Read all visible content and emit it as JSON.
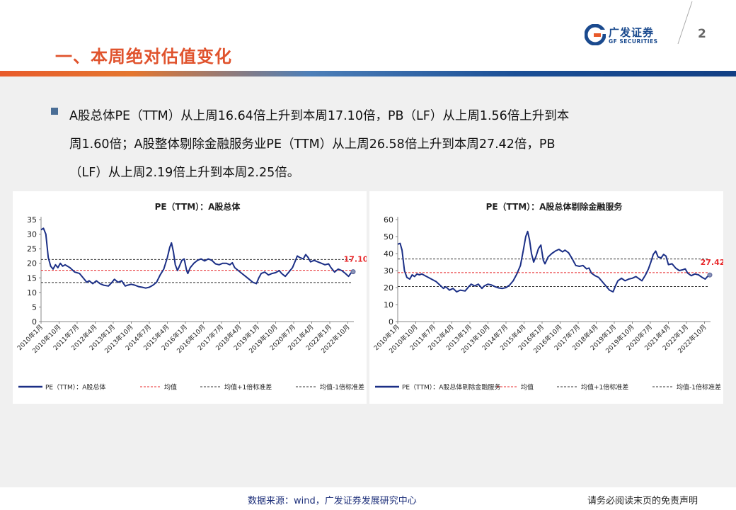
{
  "header": {
    "title": "一、本周绝对估值变化",
    "logo_cn": "广发证券",
    "logo_en": "GF SECURITIES",
    "page_number": "2"
  },
  "body": {
    "line1": "A股总体PE（TTM）从上周16.64倍上升到本周17.10倍，PB（LF）从上周1.56倍上升到本",
    "line2": "周1.60倍；A股整体剔除金融服务业PE（TTM）从上周26.58倍上升到本周27.42倍，PB",
    "line3": "（LF）从上周2.19倍上升到本周2.25倍。"
  },
  "footer": {
    "source": "数据来源：wind，广发证券发展研究中心",
    "disclaimer": "请务必阅读末页的免责声明"
  },
  "colors": {
    "title": "#e0532d",
    "series": "#1b2f86",
    "mean": "#e8282b",
    "std": "#333333",
    "last_label": "#e8282b"
  },
  "chart_data": [
    {
      "type": "line",
      "title": "PE（TTM）：A股总体",
      "ylim": [
        0,
        35
      ],
      "yticks": [
        "0",
        "5",
        "10",
        "15",
        "20",
        "25",
        "30",
        "35"
      ],
      "xtick_labels": [
        "2010年1月",
        "2010年10月",
        "2011年7月",
        "2012年4月",
        "2013年1月",
        "2013年10月",
        "2014年7月",
        "2015年4月",
        "2016年1月",
        "2016年10月",
        "2017年7月",
        "2018年4月",
        "2019年1月",
        "2019年10月",
        "2020年7月",
        "2021年4月",
        "2022年1月",
        "2022年10月"
      ],
      "x_range": [
        2010.0,
        2023.0
      ],
      "last_value_label": "17.10",
      "mean": 17.6,
      "plus_std": 21.3,
      "minus_std": 13.4,
      "legend": [
        "PE（TTM）：A股总体",
        "均值",
        "均值+1倍标准差",
        "均值-1倍标准差"
      ],
      "series": [
        {
          "name": "PE（TTM）：A股总体",
          "points": [
            [
              2010.0,
              31.5
            ],
            [
              2010.1,
              32.0
            ],
            [
              2010.2,
              30.0
            ],
            [
              2010.3,
              22.0
            ],
            [
              2010.4,
              19.0
            ],
            [
              2010.5,
              18.0
            ],
            [
              2010.6,
              19.5
            ],
            [
              2010.7,
              18.5
            ],
            [
              2010.8,
              20.0
            ],
            [
              2010.9,
              19.0
            ],
            [
              2011.0,
              19.5
            ],
            [
              2011.2,
              18.5
            ],
            [
              2011.4,
              17.0
            ],
            [
              2011.6,
              16.5
            ],
            [
              2011.75,
              15.0
            ],
            [
              2011.9,
              13.5
            ],
            [
              2012.0,
              14.0
            ],
            [
              2012.15,
              13.0
            ],
            [
              2012.3,
              14.0
            ],
            [
              2012.45,
              13.0
            ],
            [
              2012.6,
              12.5
            ],
            [
              2012.8,
              12.2
            ],
            [
              2012.95,
              13.5
            ],
            [
              2013.05,
              14.5
            ],
            [
              2013.2,
              13.5
            ],
            [
              2013.35,
              14.0
            ],
            [
              2013.5,
              12.2
            ],
            [
              2013.6,
              12.5
            ],
            [
              2013.75,
              12.8
            ],
            [
              2013.9,
              12.5
            ],
            [
              2014.05,
              12.0
            ],
            [
              2014.2,
              11.8
            ],
            [
              2014.35,
              11.5
            ],
            [
              2014.5,
              11.8
            ],
            [
              2014.65,
              12.5
            ],
            [
              2014.8,
              13.5
            ],
            [
              2014.95,
              16.0
            ],
            [
              2015.1,
              18.0
            ],
            [
              2015.25,
              22.0
            ],
            [
              2015.35,
              25.5
            ],
            [
              2015.42,
              27.0
            ],
            [
              2015.5,
              24.0
            ],
            [
              2015.58,
              19.5
            ],
            [
              2015.67,
              17.5
            ],
            [
              2015.75,
              19.0
            ],
            [
              2015.85,
              21.0
            ],
            [
              2015.95,
              21.5
            ],
            [
              2016.05,
              17.5
            ],
            [
              2016.1,
              16.5
            ],
            [
              2016.2,
              18.5
            ],
            [
              2016.35,
              20.0
            ],
            [
              2016.5,
              21.0
            ],
            [
              2016.65,
              21.5
            ],
            [
              2016.8,
              20.8
            ],
            [
              2016.95,
              21.5
            ],
            [
              2017.1,
              21.0
            ],
            [
              2017.25,
              19.8
            ],
            [
              2017.4,
              19.5
            ],
            [
              2017.55,
              20.0
            ],
            [
              2017.7,
              20.0
            ],
            [
              2017.85,
              19.5
            ],
            [
              2017.95,
              20.2
            ],
            [
              2018.05,
              18.5
            ],
            [
              2018.2,
              17.5
            ],
            [
              2018.35,
              16.5
            ],
            [
              2018.5,
              15.5
            ],
            [
              2018.65,
              14.5
            ],
            [
              2018.8,
              13.5
            ],
            [
              2018.95,
              13.0
            ],
            [
              2019.05,
              15.0
            ],
            [
              2019.15,
              16.5
            ],
            [
              2019.3,
              17.0
            ],
            [
              2019.45,
              16.0
            ],
            [
              2019.6,
              16.5
            ],
            [
              2019.75,
              16.8
            ],
            [
              2019.9,
              17.5
            ],
            [
              2020.0,
              16.5
            ],
            [
              2020.15,
              15.5
            ],
            [
              2020.3,
              17.0
            ],
            [
              2020.45,
              18.5
            ],
            [
              2020.55,
              20.5
            ],
            [
              2020.65,
              22.5
            ],
            [
              2020.75,
              22.0
            ],
            [
              2020.9,
              21.5
            ],
            [
              2021.0,
              23.0
            ],
            [
              2021.1,
              22.0
            ],
            [
              2021.2,
              20.5
            ],
            [
              2021.35,
              21.0
            ],
            [
              2021.5,
              20.5
            ],
            [
              2021.65,
              20.0
            ],
            [
              2021.8,
              19.5
            ],
            [
              2021.95,
              19.8
            ],
            [
              2022.05,
              18.5
            ],
            [
              2022.2,
              17.0
            ],
            [
              2022.35,
              18.0
            ],
            [
              2022.5,
              17.5
            ],
            [
              2022.65,
              16.5
            ],
            [
              2022.78,
              15.5
            ],
            [
              2022.88,
              16.64
            ],
            [
              2022.97,
              17.1
            ]
          ]
        }
      ]
    },
    {
      "type": "line",
      "title": "PE（TTM）：A股总体剔除金融服务",
      "ylim": [
        0,
        60
      ],
      "yticks": [
        "0",
        "10",
        "20",
        "30",
        "40",
        "50",
        "60"
      ],
      "xtick_labels": [
        "2010年1月",
        "2010年10月",
        "2011年7月",
        "2012年4月",
        "2013年1月",
        "2013年10月",
        "2014年7月",
        "2015年4月",
        "2016年1月",
        "2016年10月",
        "2017年7月",
        "2018年4月",
        "2019年1月",
        "2019年10月",
        "2020年7月",
        "2021年4月",
        "2022年1月",
        "2022年10月"
      ],
      "x_range": [
        2010.0,
        2023.0
      ],
      "last_value_label": "27.42",
      "mean": 28.8,
      "plus_std": 36.8,
      "minus_std": 20.6,
      "legend": [
        "PE（TTM）：A股总体剔除金融服务",
        "均值",
        "均值+1倍标准差",
        "均值-1倍标准差"
      ],
      "series": [
        {
          "name": "PE（TTM）：A股总体剔除金融服务",
          "points": [
            [
              2010.0,
              45.5
            ],
            [
              2010.1,
              46.0
            ],
            [
              2010.18,
              42.0
            ],
            [
              2010.28,
              30.0
            ],
            [
              2010.38,
              26.0
            ],
            [
              2010.5,
              25.0
            ],
            [
              2010.6,
              27.5
            ],
            [
              2010.7,
              26.5
            ],
            [
              2010.8,
              28.0
            ],
            [
              2010.9,
              27.5
            ],
            [
              2011.0,
              28.0
            ],
            [
              2011.2,
              26.5
            ],
            [
              2011.4,
              25.0
            ],
            [
              2011.6,
              23.5
            ],
            [
              2011.75,
              21.5
            ],
            [
              2011.9,
              19.5
            ],
            [
              2012.0,
              20.5
            ],
            [
              2012.15,
              18.5
            ],
            [
              2012.3,
              19.5
            ],
            [
              2012.45,
              17.5
            ],
            [
              2012.6,
              18.5
            ],
            [
              2012.8,
              18.0
            ],
            [
              2012.95,
              20.5
            ],
            [
              2013.05,
              22.0
            ],
            [
              2013.2,
              21.0
            ],
            [
              2013.35,
              22.0
            ],
            [
              2013.5,
              19.5
            ],
            [
              2013.6,
              21.0
            ],
            [
              2013.75,
              22.0
            ],
            [
              2013.9,
              21.5
            ],
            [
              2014.05,
              20.5
            ],
            [
              2014.2,
              19.8
            ],
            [
              2014.35,
              19.5
            ],
            [
              2014.5,
              20.0
            ],
            [
              2014.65,
              21.5
            ],
            [
              2014.8,
              24.0
            ],
            [
              2014.95,
              28.0
            ],
            [
              2015.1,
              33.0
            ],
            [
              2015.22,
              42.0
            ],
            [
              2015.32,
              50.0
            ],
            [
              2015.4,
              53.0
            ],
            [
              2015.48,
              48.0
            ],
            [
              2015.56,
              40.0
            ],
            [
              2015.65,
              35.0
            ],
            [
              2015.75,
              38.5
            ],
            [
              2015.85,
              43.0
            ],
            [
              2015.95,
              45.0
            ],
            [
              2016.05,
              36.0
            ],
            [
              2016.12,
              34.0
            ],
            [
              2016.25,
              38.0
            ],
            [
              2016.4,
              40.0
            ],
            [
              2016.55,
              41.5
            ],
            [
              2016.7,
              42.5
            ],
            [
              2016.85,
              41.0
            ],
            [
              2016.95,
              42.0
            ],
            [
              2017.1,
              40.5
            ],
            [
              2017.25,
              37.0
            ],
            [
              2017.4,
              33.0
            ],
            [
              2017.55,
              32.5
            ],
            [
              2017.7,
              33.0
            ],
            [
              2017.85,
              31.0
            ],
            [
              2017.95,
              31.5
            ],
            [
              2018.05,
              28.5
            ],
            [
              2018.2,
              27.0
            ],
            [
              2018.35,
              26.0
            ],
            [
              2018.5,
              23.5
            ],
            [
              2018.65,
              21.0
            ],
            [
              2018.8,
              18.5
            ],
            [
              2018.95,
              17.5
            ],
            [
              2019.05,
              21.0
            ],
            [
              2019.15,
              24.0
            ],
            [
              2019.3,
              25.5
            ],
            [
              2019.45,
              24.0
            ],
            [
              2019.6,
              25.0
            ],
            [
              2019.75,
              25.5
            ],
            [
              2019.9,
              26.5
            ],
            [
              2020.0,
              25.5
            ],
            [
              2020.15,
              24.0
            ],
            [
              2020.3,
              27.5
            ],
            [
              2020.42,
              31.0
            ],
            [
              2020.52,
              35.0
            ],
            [
              2020.62,
              39.5
            ],
            [
              2020.72,
              41.5
            ],
            [
              2020.82,
              38.0
            ],
            [
              2020.95,
              37.5
            ],
            [
              2021.05,
              39.5
            ],
            [
              2021.15,
              38.5
            ],
            [
              2021.25,
              33.5
            ],
            [
              2021.4,
              34.0
            ],
            [
              2021.55,
              31.5
            ],
            [
              2021.7,
              30.0
            ],
            [
              2021.85,
              30.5
            ],
            [
              2021.95,
              31.0
            ],
            [
              2022.05,
              28.5
            ],
            [
              2022.2,
              27.0
            ],
            [
              2022.35,
              28.0
            ],
            [
              2022.5,
              27.5
            ],
            [
              2022.65,
              26.0
            ],
            [
              2022.78,
              25.0
            ],
            [
              2022.88,
              26.58
            ],
            [
              2022.97,
              27.42
            ]
          ]
        }
      ]
    }
  ]
}
